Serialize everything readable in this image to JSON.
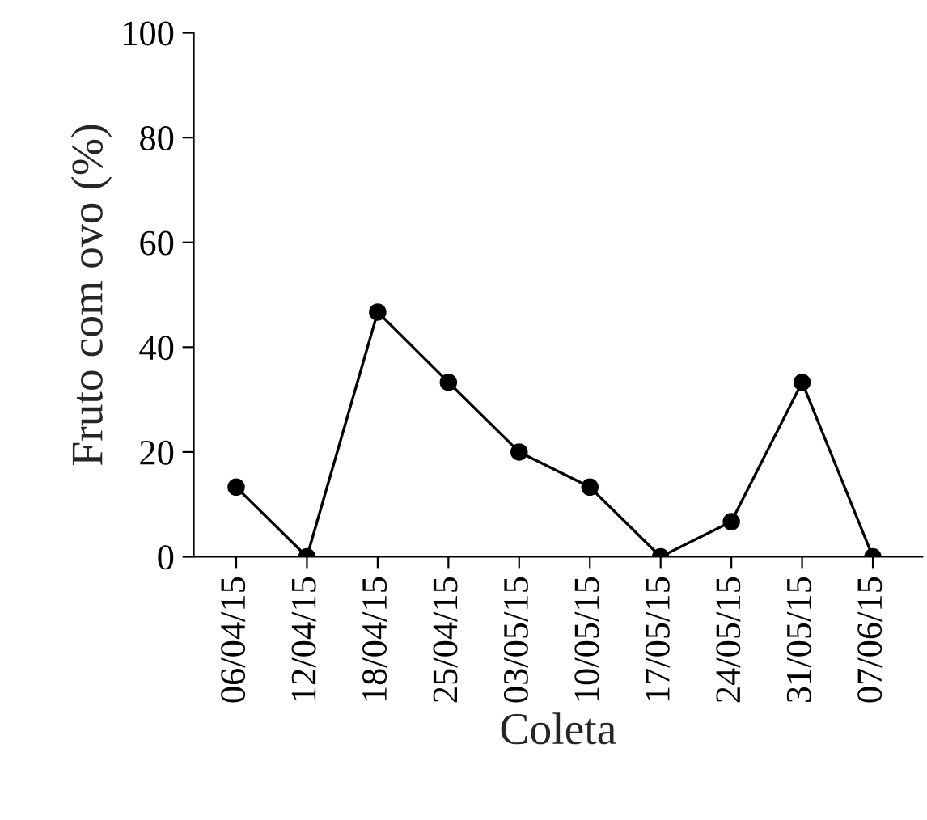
{
  "chart_data": {
    "type": "line",
    "xlabel": "Coleta",
    "ylabel": "Fruto com ovo (%)",
    "categories": [
      "06/04/15",
      "12/04/15",
      "18/04/15",
      "25/04/15",
      "03/05/15",
      "10/05/15",
      "17/05/15",
      "24/05/15",
      "31/05/15",
      "07/06/15"
    ],
    "series": [
      {
        "color": "#000000",
        "values": [
          13.3,
          0,
          46.7,
          33.3,
          20,
          13.3,
          0,
          6.7,
          33.3,
          0
        ]
      }
    ],
    "ylim": [
      0,
      100
    ],
    "yticks": [
      0,
      20,
      40,
      60,
      80,
      100
    ],
    "grid": false,
    "legend": false,
    "marker": "circle",
    "line_style": "solid"
  }
}
